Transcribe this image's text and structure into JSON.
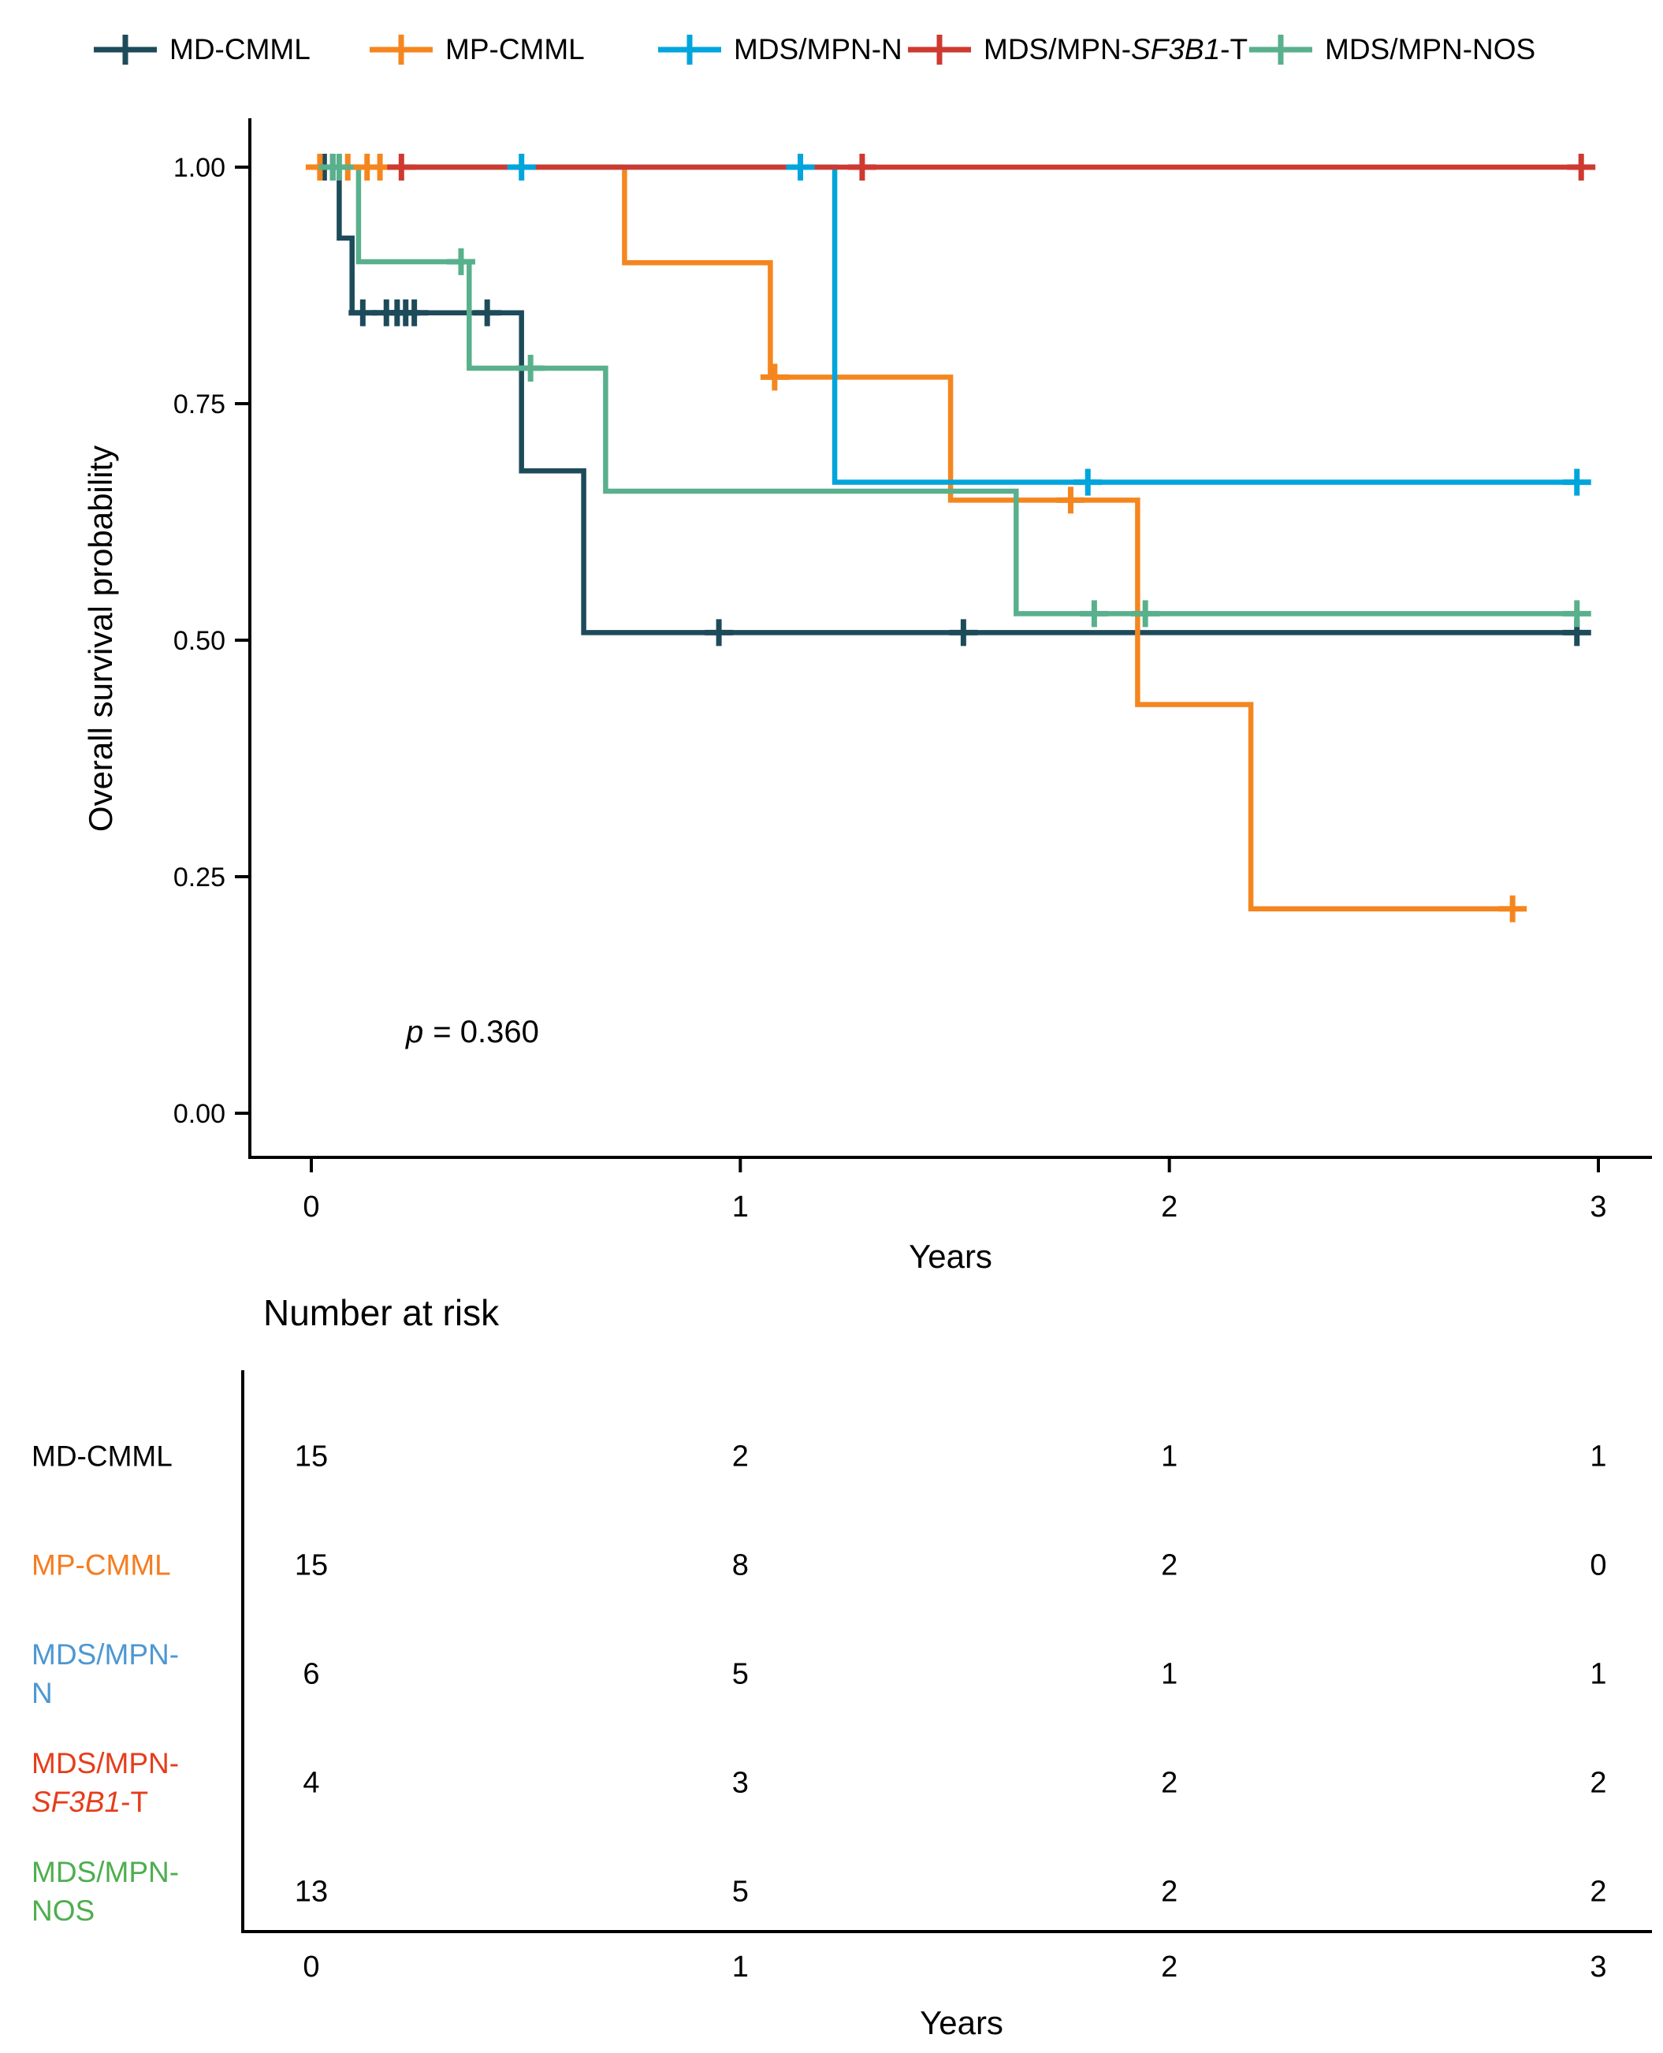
{
  "chart_data": {
    "type": "line",
    "subtype": "kaplan-meier-step",
    "title": "",
    "xlabel": "Years",
    "ylabel": "Overall survival probability",
    "p_label": "p",
    "p_equals": "= 0.360",
    "xlim": [
      0,
      3.05
    ],
    "ylim": [
      0,
      1.05
    ],
    "grid": false,
    "legend_position": "top",
    "x_ticks": [
      {
        "v": 0,
        "label": "0"
      },
      {
        "v": 1,
        "label": "1"
      },
      {
        "v": 2,
        "label": "2"
      },
      {
        "v": 3,
        "label": "3"
      }
    ],
    "y_ticks": [
      {
        "v": 1.0,
        "label": "1.00"
      },
      {
        "v": 0.75,
        "label": "0.75"
      },
      {
        "v": 0.5,
        "label": "0.50"
      },
      {
        "v": 0.25,
        "label": "0.25"
      },
      {
        "v": 0.0,
        "label": "0.00"
      }
    ],
    "series": [
      {
        "name": "MD-CMML",
        "label_parts": [
          {
            "text": "MD-CMML"
          }
        ],
        "color": "#1d4b59",
        "steps": [
          [
            0,
            1
          ],
          [
            0.065,
            1
          ],
          [
            0.065,
            0.925
          ],
          [
            0.095,
            0.925
          ],
          [
            0.095,
            0.846
          ],
          [
            0.49,
            0.846
          ],
          [
            0.49,
            0.679
          ],
          [
            0.635,
            0.679
          ],
          [
            0.635,
            0.508
          ],
          [
            2.96,
            0.508
          ]
        ],
        "censors": [
          [
            0.03,
            1
          ],
          [
            0.05,
            1
          ],
          [
            0.12,
            0.846
          ],
          [
            0.175,
            0.846
          ],
          [
            0.2,
            0.846
          ],
          [
            0.22,
            0.846
          ],
          [
            0.24,
            0.846
          ],
          [
            0.41,
            0.846
          ],
          [
            0.95,
            0.508
          ],
          [
            1.52,
            0.508
          ],
          [
            2.95,
            0.508
          ]
        ]
      },
      {
        "name": "MP-CMML",
        "label_parts": [
          {
            "text": "MP-CMML"
          }
        ],
        "color": "#f5861f",
        "steps": [
          [
            0,
            1
          ],
          [
            0.73,
            1
          ],
          [
            0.73,
            0.899
          ],
          [
            1.07,
            0.899
          ],
          [
            1.07,
            0.778
          ],
          [
            1.49,
            0.778
          ],
          [
            1.49,
            0.648
          ],
          [
            1.926,
            0.648
          ],
          [
            1.926,
            0.432
          ],
          [
            2.19,
            0.432
          ],
          [
            2.19,
            0.216
          ],
          [
            2.81,
            0.216
          ]
        ],
        "censors": [
          [
            0.02,
            1
          ],
          [
            0.085,
            1
          ],
          [
            0.13,
            1
          ],
          [
            0.16,
            1
          ],
          [
            1.08,
            0.778
          ],
          [
            1.77,
            0.648
          ],
          [
            2.8,
            0.216
          ]
        ]
      },
      {
        "name": "MDS/MPN-N",
        "label_parts": [
          {
            "text": "MDS/MPN-N"
          }
        ],
        "color": "#00a5dc",
        "steps": [
          [
            0,
            1
          ],
          [
            1.22,
            1
          ],
          [
            1.22,
            0.667
          ],
          [
            2.96,
            0.667
          ]
        ],
        "censors": [
          [
            0.49,
            1
          ],
          [
            1.14,
            1
          ],
          [
            1.81,
            0.667
          ],
          [
            2.95,
            0.667
          ]
        ]
      },
      {
        "name": "MDS/MPN-SF3B1-T",
        "label_parts": [
          {
            "text": "MDS/MPN-"
          },
          {
            "text": "SF3B1",
            "italic": true
          },
          {
            "text": "-T"
          }
        ],
        "color": "#ce3a30",
        "steps": [
          [
            0,
            1
          ],
          [
            2.97,
            1
          ]
        ],
        "censors": [
          [
            0.21,
            1
          ],
          [
            1.284,
            1
          ],
          [
            2.96,
            1
          ]
        ]
      },
      {
        "name": "MDS/MPN-NOS",
        "label_parts": [
          {
            "text": "MDS/MPN-NOS"
          }
        ],
        "color": "#59b08c",
        "steps": [
          [
            0,
            1
          ],
          [
            0.11,
            1
          ],
          [
            0.11,
            0.9
          ],
          [
            0.368,
            0.9
          ],
          [
            0.368,
            0.7875
          ],
          [
            0.686,
            0.7875
          ],
          [
            0.686,
            0.6575
          ],
          [
            1.643,
            0.6575
          ],
          [
            1.643,
            0.528
          ],
          [
            2.96,
            0.528
          ]
        ],
        "censors": [
          [
            0.05,
            1
          ],
          [
            0.065,
            1
          ],
          [
            0.349,
            0.9
          ],
          [
            0.511,
            0.7875
          ],
          [
            1.825,
            0.528
          ],
          [
            1.944,
            0.528
          ],
          [
            2.95,
            0.528
          ]
        ]
      }
    ],
    "number_at_risk": {
      "time_points": [
        0,
        1,
        2,
        3
      ],
      "rows": [
        {
          "name": "MD-CMML",
          "label_lines": [
            [
              {
                "text": "MD-CMML"
              }
            ]
          ],
          "label_color": "#000000",
          "counts": [
            "15",
            "2",
            "1",
            "1"
          ]
        },
        {
          "name": "MP-CMML",
          "label_lines": [
            [
              {
                "text": "MP-CMML"
              }
            ]
          ],
          "label_color": "#f57c20",
          "counts": [
            "15",
            "8",
            "2",
            "0"
          ]
        },
        {
          "name": "MDS/MPN-N",
          "label_lines": [
            [
              {
                "text": "MDS/MPN-"
              }
            ],
            [
              {
                "text": "N"
              }
            ]
          ],
          "label_color": "#4d97d2",
          "counts": [
            "6",
            "5",
            "1",
            "1"
          ]
        },
        {
          "name": "MDS/MPN-SF3B1-T",
          "label_lines": [
            [
              {
                "text": "MDS/MPN-"
              }
            ],
            [
              {
                "text": "SF3B1",
                "italic": true
              },
              {
                "text": "-T"
              }
            ]
          ],
          "label_color": "#e53d1a",
          "counts": [
            "4",
            "3",
            "2",
            "2"
          ]
        },
        {
          "name": "MDS/MPN-NOS",
          "label_lines": [
            [
              {
                "text": "MDS/MPN-"
              }
            ],
            [
              {
                "text": "NOS"
              }
            ]
          ],
          "label_color": "#4dae4f",
          "counts": [
            "13",
            "5",
            "2",
            "2"
          ]
        }
      ]
    }
  },
  "risk_table": {
    "title": "Number at risk",
    "xlabel": "Years"
  }
}
